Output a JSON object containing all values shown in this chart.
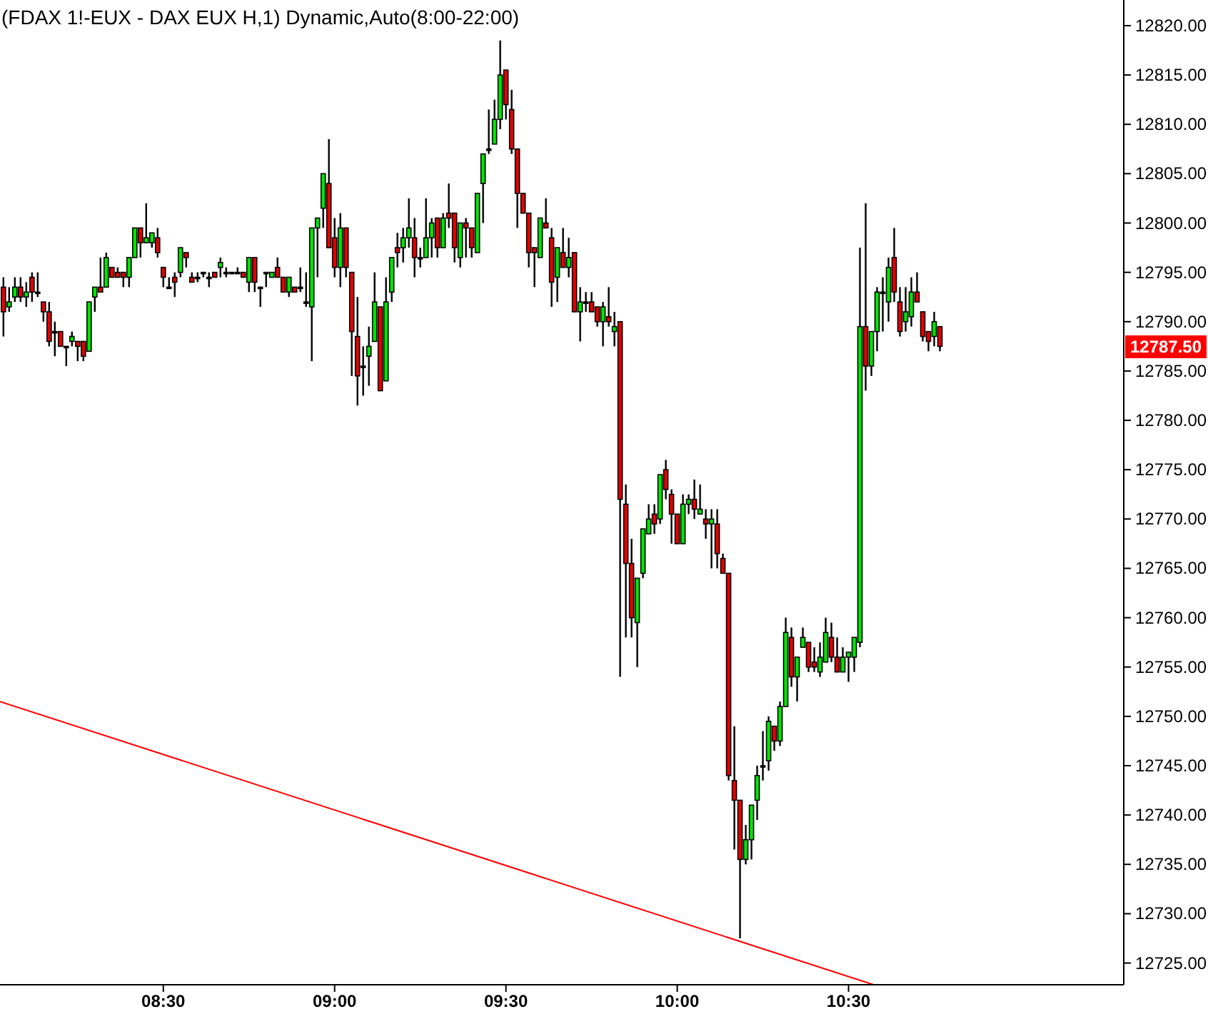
{
  "chart_data": {
    "type": "candlestick",
    "title": "(FDAX 1!-EUX - DAX EUX H,1) Dynamic,Auto(8:00-22:00)",
    "x": [
      8.0333,
      8.05,
      8.0667,
      8.0833,
      8.1,
      8.1167,
      8.1333,
      8.15,
      8.1667,
      8.1833,
      8.2,
      8.2167,
      8.2333,
      8.25,
      8.2667,
      8.2833,
      8.3,
      8.3167,
      8.3333,
      8.35,
      8.3667,
      8.3833,
      8.4,
      8.4167,
      8.4333,
      8.45,
      8.4667,
      8.4833,
      8.5,
      8.5167,
      8.5333,
      8.55,
      8.5667,
      8.5833,
      8.6,
      8.6167,
      8.6333,
      8.65,
      8.6667,
      8.6833,
      8.7,
      8.7167,
      8.7333,
      8.75,
      8.7667,
      8.7833,
      8.8,
      8.8167,
      8.8333,
      8.85,
      8.8667,
      8.8833,
      8.9,
      8.9167,
      8.9333,
      8.95,
      8.9667,
      8.9833,
      9,
      9.0167,
      9.0333,
      9.05,
      9.0667,
      9.0833,
      9.1,
      9.1167,
      9.1333,
      9.15,
      9.1667,
      9.1833,
      9.2,
      9.2167,
      9.2333,
      9.25,
      9.2667,
      9.2833,
      9.3,
      9.3167,
      9.3333,
      9.35,
      9.3667,
      9.3833,
      9.4,
      9.4167,
      9.4333,
      9.45,
      9.4667,
      9.4833,
      9.5,
      9.5167,
      9.5333,
      9.55,
      9.5667,
      9.5833,
      9.6,
      9.6167,
      9.6333,
      9.65,
      9.6667,
      9.6833,
      9.7,
      9.7167,
      9.7333,
      9.75,
      9.7667,
      9.7833,
      9.8,
      9.8167,
      9.8333,
      9.85,
      9.8667,
      9.8833,
      9.9,
      9.9167,
      9.9333,
      9.95,
      9.9667,
      9.9833,
      10,
      10.0167,
      10.0333,
      10.05,
      10.0667,
      10.0833,
      10.1,
      10.1167,
      10.1333,
      10.15,
      10.1667,
      10.1833,
      10.2,
      10.2167,
      10.2333,
      10.25,
      10.2667,
      10.2833,
      10.3,
      10.3167,
      10.3333,
      10.35,
      10.3667,
      10.3833,
      10.4,
      10.4167,
      10.4333,
      10.45,
      10.4667,
      10.4833,
      10.5,
      10.5167,
      10.5333,
      10.55,
      10.5667,
      10.5833,
      10.6,
      10.6167,
      10.6333,
      10.65,
      10.6667,
      10.6833,
      10.7,
      10.7167,
      10.7333,
      10.75,
      10.7667
    ],
    "ohlc": [
      [
        12793.5,
        12794.5,
        12788.5,
        12791
      ],
      [
        12791.5,
        12793.5,
        12791,
        12792
      ],
      [
        12792.5,
        12794.5,
        12792,
        12793.5
      ],
      [
        12793.5,
        12794.5,
        12792,
        12792.5
      ],
      [
        12792.5,
        12794,
        12791.5,
        12793
      ],
      [
        12794.5,
        12795,
        12792,
        12793
      ],
      [
        12793,
        12795,
        12792.5,
        12793
      ],
      [
        12792,
        12792,
        12790,
        12791
      ],
      [
        12791,
        12792,
        12787.5,
        12788
      ],
      [
        12789,
        12790,
        12786.5,
        12789
      ],
      [
        12789,
        12789,
        12787.5,
        12787.5
      ],
      [
        12787.5,
        12787.5,
        12785.5,
        12787.5
      ],
      [
        12788,
        12789,
        12787.5,
        12788.5
      ],
      [
        12788,
        12788,
        12786,
        12787.5
      ],
      [
        12788,
        12788,
        12786,
        12786.5
      ],
      [
        12787,
        12792,
        12787,
        12792
      ],
      [
        12792.5,
        12793.5,
        12791,
        12793.5
      ],
      [
        12793.5,
        12796.5,
        12793,
        12793
      ],
      [
        12793.5,
        12797,
        12793.5,
        12796.5
      ],
      [
        12795.5,
        12795.5,
        12794.5,
        12794.5
      ],
      [
        12795,
        12795.5,
        12794.5,
        12794.5
      ],
      [
        12795,
        12795,
        12793.5,
        12794.5
      ],
      [
        12794.5,
        12796.5,
        12793.5,
        12796.5
      ],
      [
        12796.5,
        12799.5,
        12796.5,
        12799.5
      ],
      [
        12799.5,
        12799.5,
        12796.5,
        12798
      ],
      [
        12798,
        12802,
        12798,
        12798.5
      ],
      [
        12798,
        12799,
        12797.5,
        12799
      ],
      [
        12798.5,
        12799.5,
        12796.5,
        12797
      ],
      [
        12795.5,
        12795.5,
        12793.5,
        12794.5
      ],
      [
        12793.5,
        12794.5,
        12793.5,
        12793.5
      ],
      [
        12794.5,
        12795,
        12792.5,
        12794
      ],
      [
        12795,
        12797.5,
        12794.5,
        12797.5
      ],
      [
        12797,
        12797,
        12795.5,
        12796.5
      ],
      [
        12794.5,
        12795,
        12794,
        12794
      ],
      [
        12794.5,
        12795,
        12794,
        12794.5
      ],
      [
        12795,
        12795,
        12794.5,
        12795
      ],
      [
        12794.5,
        12795,
        12793.5,
        12794.5
      ],
      [
        12795,
        12795,
        12794.5,
        12794.5
      ],
      [
        12795.5,
        12796.5,
        12794.5,
        12796
      ],
      [
        12795,
        12795.5,
        12794.5,
        12795
      ],
      [
        12795,
        12795,
        12795,
        12795
      ],
      [
        12795,
        12795.5,
        12795,
        12795
      ],
      [
        12795,
        12795,
        12794.5,
        12794.5
      ],
      [
        12794,
        12796.5,
        12793,
        12796.5
      ],
      [
        12796.5,
        12796.5,
        12793,
        12794
      ],
      [
        12793.5,
        12793.5,
        12791.5,
        12793.5
      ],
      [
        12795,
        12795,
        12793.5,
        12795
      ],
      [
        12794.5,
        12795,
        12794.5,
        12795
      ],
      [
        12795.5,
        12796.5,
        12794.5,
        12794.5
      ],
      [
        12794.5,
        12794.5,
        12793,
        12793
      ],
      [
        12793,
        12794.5,
        12792.5,
        12794.5
      ],
      [
        12793.5,
        12793.5,
        12793,
        12793
      ],
      [
        12793.5,
        12795.5,
        12793,
        12793.5
      ],
      [
        12792,
        12795,
        12791.5,
        12792
      ],
      [
        12791.5,
        12799.5,
        12786,
        12799.5
      ],
      [
        12799.5,
        12800.5,
        12794.5,
        12800.5
      ],
      [
        12801.5,
        12805,
        12799.5,
        12805
      ],
      [
        12804,
        12808.5,
        12797.5,
        12797.5
      ],
      [
        12798.5,
        12800.5,
        12794.5,
        12795.5
      ],
      [
        12795.5,
        12801,
        12793.5,
        12799.5
      ],
      [
        12799.5,
        12799.5,
        12794.5,
        12795.5
      ],
      [
        12795,
        12795,
        12784.5,
        12789
      ],
      [
        12788.5,
        12792.5,
        12781.5,
        12784.5
      ],
      [
        12785.5,
        12787.5,
        12782.5,
        12785.5
      ],
      [
        12786.5,
        12789.5,
        12783.5,
        12787.5
      ],
      [
        12788,
        12795,
        12788,
        12792
      ],
      [
        12791.5,
        12791.5,
        12783,
        12783
      ],
      [
        12784,
        12794.5,
        12784,
        12792
      ],
      [
        12793,
        12796.5,
        12792,
        12796.5
      ],
      [
        12797.5,
        12799,
        12795.5,
        12797
      ],
      [
        12797.5,
        12799.5,
        12796,
        12798.5
      ],
      [
        12798.5,
        12802.5,
        12797.5,
        12799.5
      ],
      [
        12798.5,
        12800.5,
        12794.5,
        12796.5
      ],
      [
        12796.5,
        12797.5,
        12795.5,
        12796.5
      ],
      [
        12796.5,
        12802.5,
        12796.5,
        12798.5
      ],
      [
        12798.5,
        12800.5,
        12796.5,
        12800
      ],
      [
        12800.5,
        12800.5,
        12796.5,
        12797.5
      ],
      [
        12797.5,
        12801,
        12797.5,
        12800.5
      ],
      [
        12801,
        12804,
        12799.5,
        12800.5
      ],
      [
        12801,
        12801,
        12796,
        12797.5
      ],
      [
        12796.5,
        12800,
        12795.5,
        12800
      ],
      [
        12800,
        12800.5,
        12796.5,
        12799.5
      ],
      [
        12799.5,
        12799.5,
        12796.5,
        12797.5
      ],
      [
        12797,
        12803,
        12797,
        12803
      ],
      [
        12804,
        12807,
        12800,
        12807
      ],
      [
        12807.5,
        12811.5,
        12807,
        12807.5
      ],
      [
        12808,
        12812.5,
        12808,
        12810.5
      ],
      [
        12810.5,
        12818.5,
        12809.5,
        12815
      ],
      [
        12815.5,
        12815.5,
        12810.5,
        12812
      ],
      [
        12811.5,
        12813.5,
        12807,
        12807.5
      ],
      [
        12807.5,
        12807.5,
        12799.5,
        12803
      ],
      [
        12803,
        12803,
        12801,
        12801
      ],
      [
        12801,
        12801,
        12795.5,
        12797
      ],
      [
        12797.5,
        12797.5,
        12793.5,
        12797
      ],
      [
        12796.5,
        12800.5,
        12796.5,
        12800.5
      ],
      [
        12800,
        12802.5,
        12799.5,
        12799.5
      ],
      [
        12798.5,
        12799.5,
        12791.5,
        12794
      ],
      [
        12794.5,
        12797.5,
        12792,
        12797.5
      ],
      [
        12797,
        12799.5,
        12795.5,
        12795.5
      ],
      [
        12795.5,
        12798.5,
        12794.5,
        12796.5
      ],
      [
        12797,
        12797,
        12791,
        12791
      ],
      [
        12791,
        12793.5,
        12788,
        12792
      ],
      [
        12792,
        12793,
        12791,
        12792
      ],
      [
        12792,
        12793,
        12791,
        12791
      ],
      [
        12791.5,
        12791.5,
        12789.5,
        12790
      ],
      [
        12790,
        12792,
        12787.5,
        12791.5
      ],
      [
        12790.5,
        12793.5,
        12789.5,
        12790
      ],
      [
        12789,
        12791,
        12787.5,
        12789.5
      ],
      [
        12790,
        12790,
        12754,
        12772
      ],
      [
        12771.5,
        12773.5,
        12758,
        12765.5
      ],
      [
        12765.5,
        12768,
        12758,
        12760
      ],
      [
        12759.5,
        12764,
        12755,
        12764
      ],
      [
        12764.5,
        12769,
        12764,
        12769
      ],
      [
        12768.5,
        12771.5,
        12768.5,
        12770
      ],
      [
        12770.5,
        12771.5,
        12768.5,
        12769.5
      ],
      [
        12770,
        12774.5,
        12769.5,
        12774.5
      ],
      [
        12775,
        12776,
        12772,
        12773
      ],
      [
        12772.5,
        12773,
        12767.5,
        12770.5
      ],
      [
        12770.5,
        12770.5,
        12767.5,
        12767.5
      ],
      [
        12767.5,
        12772.5,
        12767.5,
        12771.5
      ],
      [
        12771.5,
        12772.5,
        12770.5,
        12772
      ],
      [
        12772,
        12774,
        12770,
        12771
      ],
      [
        12770.5,
        12773.5,
        12770.5,
        12771
      ],
      [
        12770,
        12771,
        12768,
        12769.5
      ],
      [
        12769.5,
        12771,
        12765,
        12770
      ],
      [
        12769.5,
        12771,
        12765,
        12766.5
      ],
      [
        12766,
        12766.5,
        12764.5,
        12764.5
      ],
      [
        12764.5,
        12764.5,
        12743.5,
        12744
      ],
      [
        12743.5,
        12749,
        12736.5,
        12741.5
      ],
      [
        12741.5,
        12741.5,
        12727.5,
        12735.5
      ],
      [
        12735.5,
        12739,
        12735,
        12737.5
      ],
      [
        12737.5,
        12741,
        12735.5,
        12741
      ],
      [
        12741.5,
        12745,
        12739.5,
        12744
      ],
      [
        12745,
        12748.5,
        12743.5,
        12745
      ],
      [
        12745.5,
        12750,
        12744.5,
        12749.5
      ],
      [
        12749,
        12749,
        12746.5,
        12747.5
      ],
      [
        12747.5,
        12751.5,
        12747,
        12751
      ],
      [
        12751,
        12760,
        12751,
        12758.5
      ],
      [
        12758,
        12759,
        12753,
        12754
      ],
      [
        12754,
        12756,
        12751.5,
        12756
      ],
      [
        12757,
        12759,
        12757,
        12758
      ],
      [
        12757.5,
        12757.5,
        12754.5,
        12755
      ],
      [
        12755.5,
        12757,
        12754.5,
        12755
      ],
      [
        12754.5,
        12757.5,
        12754,
        12756
      ],
      [
        12755.5,
        12760,
        12755.5,
        12758.5
      ],
      [
        12758,
        12759.5,
        12755.5,
        12756
      ],
      [
        12756,
        12758,
        12754.5,
        12754.5
      ],
      [
        12754.5,
        12757,
        12754.5,
        12756
      ],
      [
        12756,
        12756.5,
        12753.5,
        12756.5
      ],
      [
        12756,
        12758,
        12754.5,
        12758
      ],
      [
        12757.5,
        12797.5,
        12757,
        12789.5
      ],
      [
        12789.5,
        12802,
        12783,
        12785.5
      ],
      [
        12785.5,
        12789,
        12784.5,
        12789
      ],
      [
        12789,
        12793.5,
        12787,
        12793
      ],
      [
        12793,
        12794.5,
        12789,
        12793
      ],
      [
        12792,
        12796.5,
        12790,
        12795.5
      ],
      [
        12796.5,
        12799.5,
        12792,
        12793
      ],
      [
        12792,
        12793.5,
        12788.5,
        12789
      ],
      [
        12790,
        12793.5,
        12789,
        12791
      ],
      [
        12790.5,
        12794.5,
        12789.5,
        12793
      ],
      [
        12793,
        12795,
        12792,
        12792
      ],
      [
        12791,
        12791,
        12788,
        12788.5
      ],
      [
        12789,
        12789,
        12787,
        12788
      ],
      [
        12788.5,
        12791,
        12787.5,
        12790
      ],
      [
        12789.5,
        12789.5,
        12787,
        12787.5
      ]
    ],
    "series": [
      {
        "type": "line",
        "x": [
          8.0233,
          10.5734
        ],
        "values": [
          12751.5,
          12722.8
        ],
        "color": "#ff0000"
      }
    ],
    "xlim": [
      8.0233,
      11.3033
    ],
    "xticks": [
      {
        "value": 8.5,
        "label": "08:30"
      },
      {
        "value": 9,
        "label": "09:00"
      },
      {
        "value": 9.5,
        "label": "09:30"
      },
      {
        "value": 10,
        "label": "10:00"
      },
      {
        "value": 10.5,
        "label": "10:30"
      }
    ],
    "ylim": [
      12722.8,
      12822.6
    ],
    "yticks": [
      {
        "value": 12725,
        "label": "12725.00"
      },
      {
        "value": 12730,
        "label": "12730.00"
      },
      {
        "value": 12735,
        "label": "12735.00"
      },
      {
        "value": 12740,
        "label": "12740.00"
      },
      {
        "value": 12745,
        "label": "12745.00"
      },
      {
        "value": 12750,
        "label": "12750.00"
      },
      {
        "value": 12755,
        "label": "12755.00"
      },
      {
        "value": 12760,
        "label": "12760.00"
      },
      {
        "value": 12765,
        "label": "12765.00"
      },
      {
        "value": 12770,
        "label": "12770.00"
      },
      {
        "value": 12775,
        "label": "12775.00"
      },
      {
        "value": 12780,
        "label": "12780.00"
      },
      {
        "value": 12785,
        "label": "12785.00"
      },
      {
        "value": 12790,
        "label": "12790.00"
      },
      {
        "value": 12795,
        "label": "12795.00"
      },
      {
        "value": 12800,
        "label": "12800.00"
      },
      {
        "value": 12805,
        "label": "12805.00"
      },
      {
        "value": 12810,
        "label": "12810.00"
      },
      {
        "value": 12815,
        "label": "12815.00"
      },
      {
        "value": 12820,
        "label": "12820.00"
      }
    ],
    "annotations": [
      "12787.50"
    ]
  }
}
